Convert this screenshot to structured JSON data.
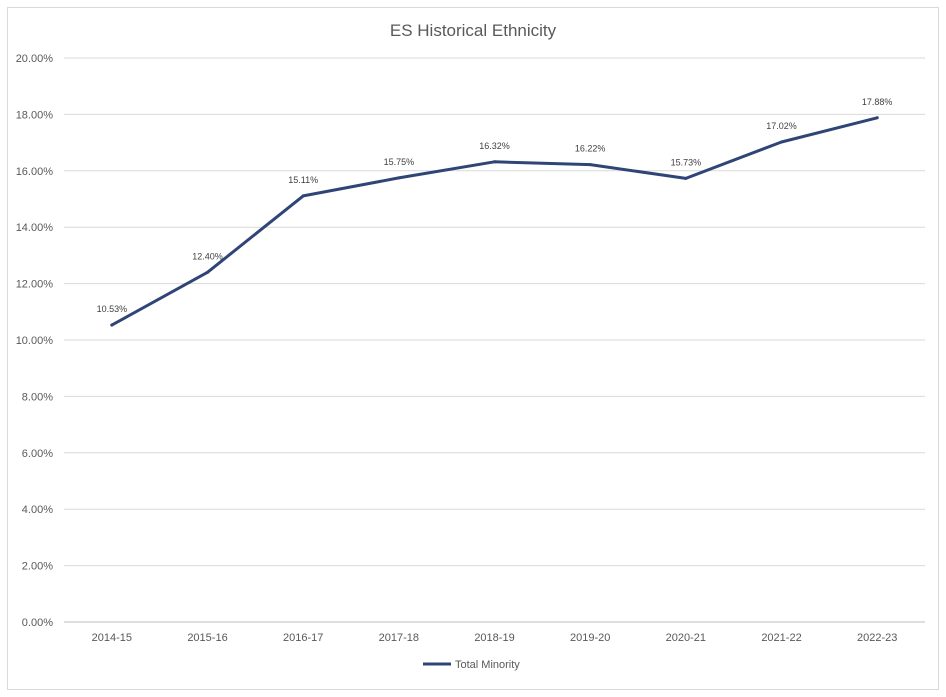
{
  "chart_data": {
    "type": "line",
    "title": "ES Historical Ethnicity",
    "categories": [
      "2014-15",
      "2015-16",
      "2016-17",
      "2017-18",
      "2018-19",
      "2019-20",
      "2020-21",
      "2021-22",
      "2022-23"
    ],
    "series": [
      {
        "name": "Total Minority",
        "values": [
          10.53,
          12.4,
          15.11,
          15.75,
          16.32,
          16.22,
          15.73,
          17.02,
          17.88
        ],
        "labels": [
          "10.53%",
          "12.40%",
          "15.11%",
          "15.75%",
          "16.32%",
          "16.22%",
          "15.73%",
          "17.02%",
          "17.88%"
        ],
        "color": "#2F4575"
      }
    ],
    "ylim": [
      0,
      20
    ],
    "yticks": [
      0,
      2,
      4,
      6,
      8,
      10,
      12,
      14,
      16,
      18,
      20
    ],
    "ytick_labels": [
      "0.00%",
      "2.00%",
      "4.00%",
      "6.00%",
      "8.00%",
      "10.00%",
      "12.00%",
      "14.00%",
      "16.00%",
      "18.00%",
      "20.00%"
    ],
    "grid": true,
    "legend_position": "bottom"
  }
}
